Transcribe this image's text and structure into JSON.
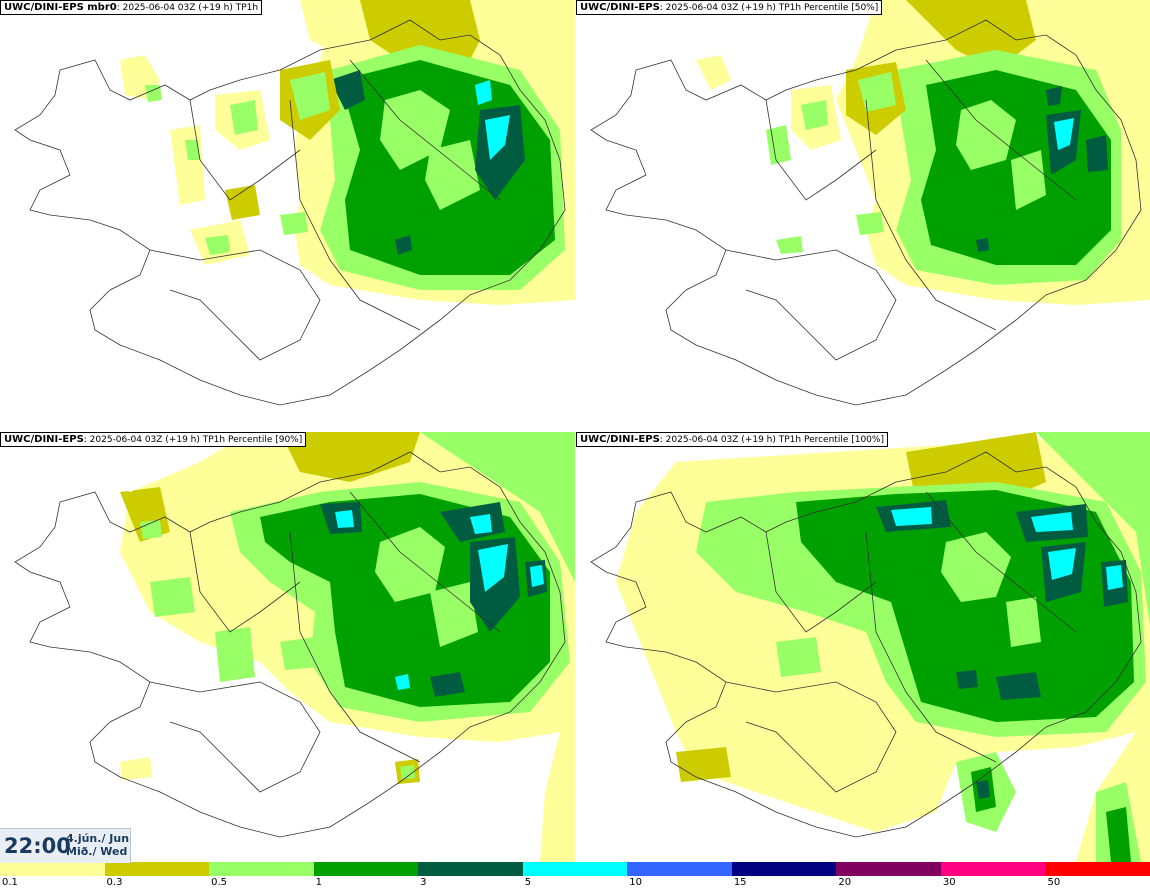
{
  "panels": [
    {
      "model": "UWC/DINI-EPS mbr0",
      "info": ": 2025-06-04 03Z (+19 h) TP1h"
    },
    {
      "model": "UWC/DINI-EPS",
      "info": ": 2025-06-04 03Z (+19 h) TP1h Percentile [50%]"
    },
    {
      "model": "UWC/DINI-EPS",
      "info": ": 2025-06-04 03Z (+19 h) TP1h Percentile [90%]"
    },
    {
      "model": "UWC/DINI-EPS",
      "info": ": 2025-06-04 03Z (+19 h) TP1h Percentile [100%]"
    }
  ],
  "valid_time": {
    "time": "22:00",
    "date_line1": "4.jún./ Jun",
    "date_line2": "Mið./ Wed"
  },
  "legend": {
    "ticks": [
      "0.1",
      "0.3",
      "0.5",
      "1",
      "3",
      "5",
      "10",
      "15",
      "20",
      "30",
      "50"
    ],
    "colors": [
      "#ffff99",
      "#cccc00",
      "#99ff66",
      "#00a000",
      "#005c40",
      "#00ffff",
      "#3366ff",
      "#000080",
      "#800060",
      "#ff0080",
      "#ff0000"
    ]
  },
  "map_colors": {
    "c01": "#ffff99",
    "c03": "#cccc00",
    "c05": "#99ff66",
    "c1": "#00a000",
    "c3": "#005c40",
    "c5": "#00ffff",
    "outline": "#333333"
  }
}
